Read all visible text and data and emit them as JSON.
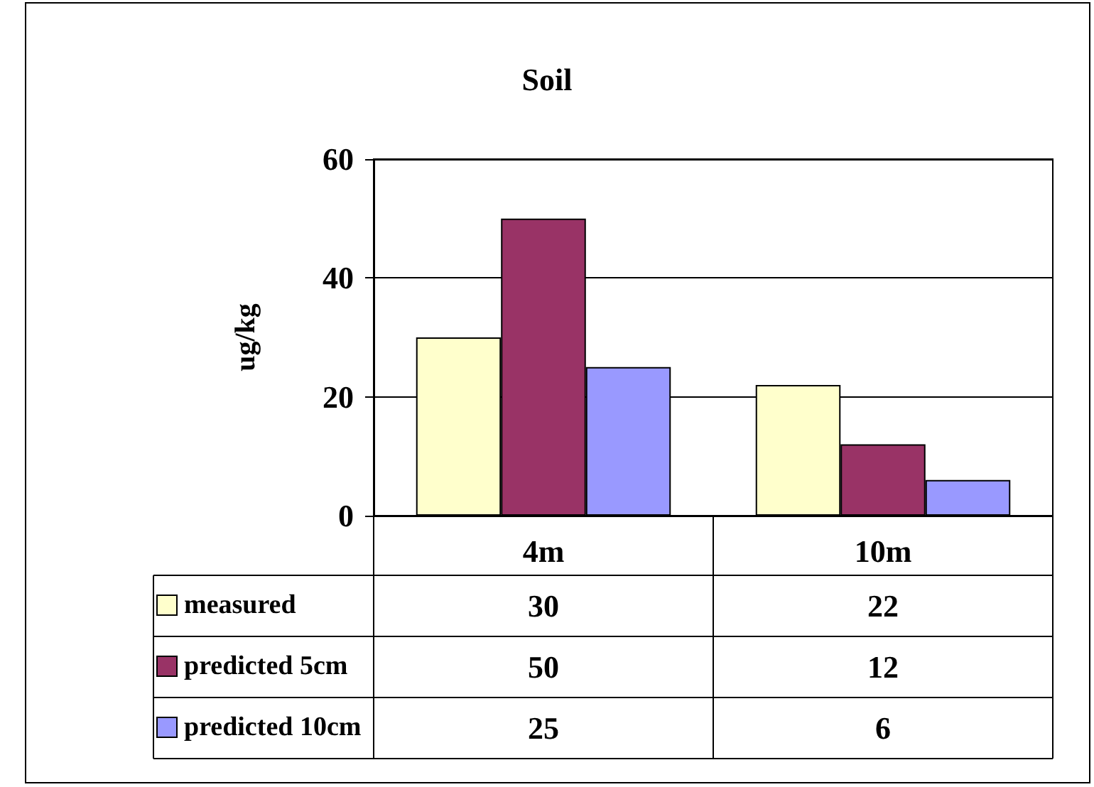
{
  "chart_data": {
    "type": "bar",
    "title": "Soil",
    "ylabel": "ug/kg",
    "categories": [
      "4m",
      "10m"
    ],
    "series": [
      {
        "name": "measured",
        "color": "#ffffcc",
        "values": [
          30,
          22
        ]
      },
      {
        "name": "predicted 5cm",
        "color": "#993366",
        "values": [
          50,
          12
        ]
      },
      {
        "name": "predicted 10cm",
        "color": "#9999ff",
        "values": [
          25,
          6
        ]
      }
    ],
    "ylim": [
      0,
      60
    ],
    "yticks": [
      0,
      20,
      40,
      60
    ],
    "grid": "y",
    "legend": "bottom left",
    "data_labels": true
  }
}
